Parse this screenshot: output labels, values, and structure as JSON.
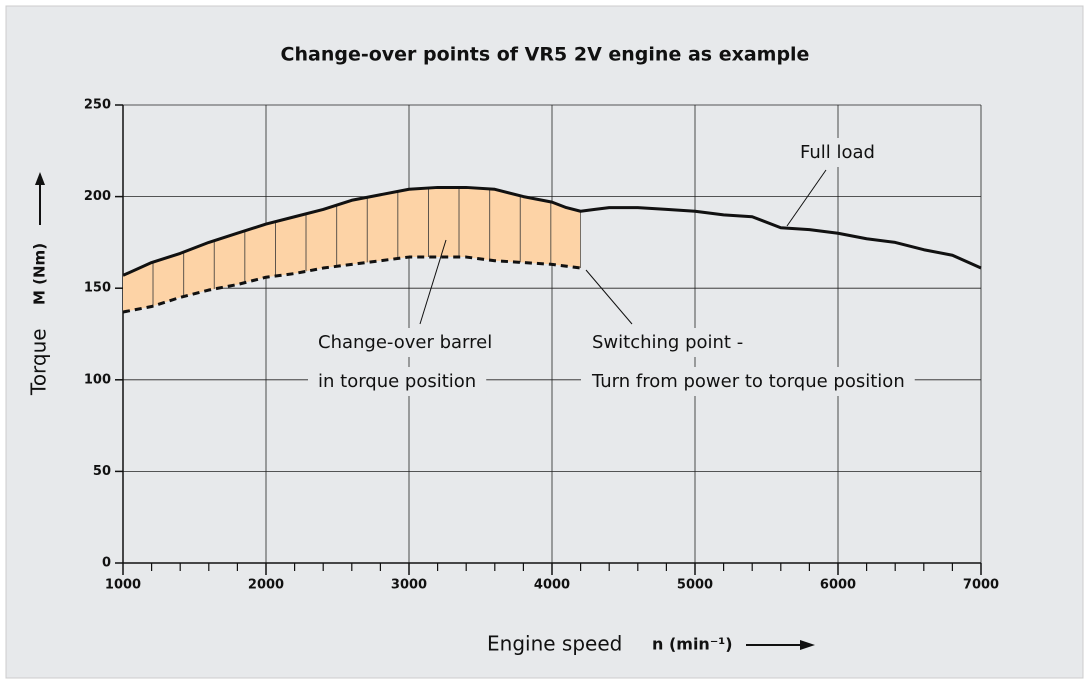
{
  "chart_data": {
    "type": "line",
    "title": "Change-over points of VR5 2V engine as example",
    "y_label": "Torque",
    "y_unit": "M (Nm)",
    "x_label": "Engine speed",
    "x_unit": "n (min⁻¹)",
    "xlim": [
      1000,
      7000
    ],
    "xticks": [
      1000,
      2000,
      3000,
      4000,
      5000,
      6000,
      7000
    ],
    "ylim": [
      0,
      250
    ],
    "yticks": [
      0,
      50,
      100,
      150,
      200,
      250
    ],
    "grid": true,
    "fill_color": "#fdd3a6",
    "series": [
      {
        "name": "Full load",
        "color": "#111111",
        "dash": false,
        "x": [
          1000,
          1200,
          1400,
          1600,
          1800,
          2000,
          2200,
          2400,
          2600,
          2800,
          3000,
          3200,
          3400,
          3600,
          3800,
          4000,
          4100,
          4200,
          4300,
          4400,
          4600,
          4800,
          5000,
          5200,
          5400,
          5600,
          5800,
          6000,
          6200,
          6400,
          6600,
          6800,
          7000
        ],
        "values": [
          157,
          164,
          169,
          175,
          180,
          185,
          189,
          193,
          198,
          201,
          204,
          205,
          205,
          204,
          200,
          197,
          194,
          192,
          193,
          194,
          194,
          193,
          192,
          190,
          189,
          183,
          182,
          180,
          177,
          175,
          171,
          168,
          161
        ]
      },
      {
        "name": "Change-over barrel",
        "color": "#111111",
        "dash": true,
        "x": [
          1000,
          1200,
          1400,
          1600,
          1800,
          2000,
          2200,
          2400,
          2600,
          2800,
          3000,
          3200,
          3400,
          3600,
          3800,
          4000,
          4200
        ],
        "values": [
          137,
          140,
          145,
          149,
          152,
          156,
          158,
          161,
          163,
          165,
          167,
          167,
          167,
          165,
          164,
          163,
          161
        ]
      }
    ],
    "annotations": [
      "Full load",
      "Change-over barrel",
      "in torque position",
      "Switching point -",
      "Turn from power to torque position"
    ]
  }
}
